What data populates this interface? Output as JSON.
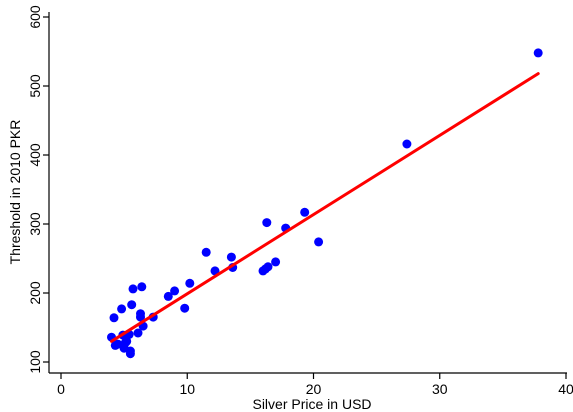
{
  "chart_data": {
    "type": "scatter",
    "title": "",
    "xlabel": "Silver Price in USD",
    "ylabel": "Threshold in 2010 PKR",
    "xlim": [
      0,
      40
    ],
    "ylim": [
      100,
      600
    ],
    "x_ticks": [
      "0",
      "10",
      "20",
      "30",
      "40"
    ],
    "y_ticks": [
      "100",
      "200",
      "300",
      "400",
      "500",
      "600"
    ],
    "grid": false,
    "legend": "none",
    "series": [
      {
        "kind": "scatter",
        "color": "#0000ff",
        "points": [
          [
            4.0,
            136
          ],
          [
            4.2,
            164
          ],
          [
            4.3,
            124
          ],
          [
            4.5,
            126
          ],
          [
            4.8,
            177
          ],
          [
            4.9,
            139
          ],
          [
            5.0,
            120
          ],
          [
            5.1,
            128
          ],
          [
            5.2,
            130
          ],
          [
            5.4,
            140
          ],
          [
            5.5,
            116
          ],
          [
            5.5,
            112
          ],
          [
            5.6,
            183
          ],
          [
            5.7,
            206
          ],
          [
            6.1,
            142
          ],
          [
            6.3,
            165
          ],
          [
            6.3,
            170
          ],
          [
            6.4,
            209
          ],
          [
            6.5,
            152
          ],
          [
            7.3,
            165
          ],
          [
            8.5,
            195
          ],
          [
            9.0,
            203
          ],
          [
            9.8,
            178
          ],
          [
            10.2,
            214
          ],
          [
            11.5,
            259
          ],
          [
            12.2,
            232
          ],
          [
            13.5,
            252
          ],
          [
            13.6,
            237
          ],
          [
            16.0,
            232
          ],
          [
            16.2,
            235
          ],
          [
            16.3,
            302
          ],
          [
            16.4,
            238
          ],
          [
            17.0,
            245
          ],
          [
            17.8,
            294
          ],
          [
            19.3,
            317
          ],
          [
            20.4,
            274
          ],
          [
            27.4,
            416
          ],
          [
            37.8,
            548
          ]
        ]
      },
      {
        "kind": "line",
        "color": "#ff0000",
        "points": [
          [
            4.0,
            130
          ],
          [
            37.8,
            518
          ]
        ]
      }
    ]
  }
}
